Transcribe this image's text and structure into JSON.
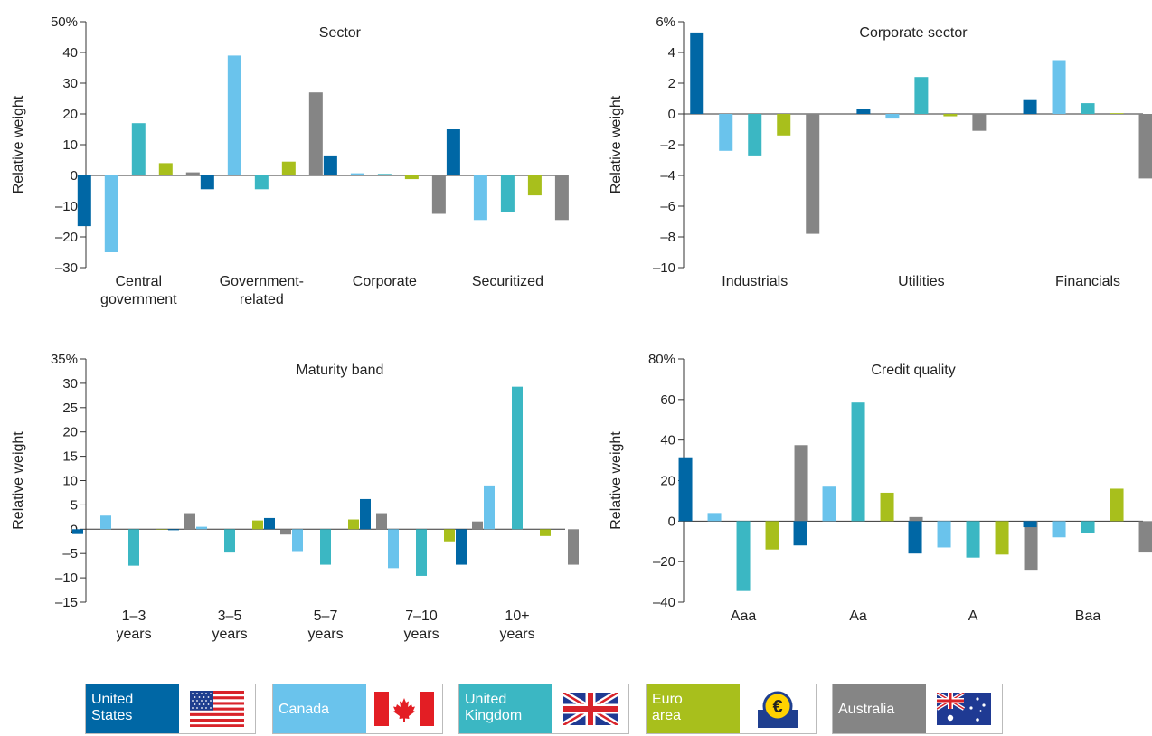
{
  "colors": {
    "United States": "#0067a5",
    "Canada": "#6ac3ec",
    "United Kingdom": "#3bb7c3",
    "Euro area": "#a8bf1c",
    "Australia": "#858585"
  },
  "legend": [
    {
      "label": "United States",
      "lines": [
        "United",
        "States"
      ],
      "flag": "us-flag-icon"
    },
    {
      "label": "Canada",
      "lines": [
        "Canada"
      ],
      "flag": "canada-flag-icon"
    },
    {
      "label": "United Kingdom",
      "lines": [
        "United",
        "Kingdom"
      ],
      "flag": "uk-flag-icon"
    },
    {
      "label": "Euro area",
      "lines": [
        "Euro",
        "area"
      ],
      "flag": "euro-flag-icon"
    },
    {
      "label": "Australia",
      "lines": [
        "Australia"
      ],
      "flag": "australia-flag-icon"
    }
  ],
  "chart_data": [
    {
      "type": "bar",
      "title": "Sector",
      "ylabel": "Relative weight",
      "ylim": [
        -30,
        50
      ],
      "yticks": [
        -30,
        -20,
        -10,
        0,
        10,
        20,
        30,
        40,
        50
      ],
      "ytick_labels": [
        "–30",
        "–20",
        "–10",
        "0",
        "10",
        "20",
        "30",
        "40",
        "50%"
      ],
      "categories": [
        [
          "Central",
          "government"
        ],
        [
          "Government-",
          "related"
        ],
        [
          "Corporate"
        ],
        [
          "Securitized"
        ]
      ],
      "series": [
        {
          "name": "United States",
          "values": [
            -16.5,
            -4.5,
            6.5,
            15
          ]
        },
        {
          "name": "Canada",
          "values": [
            -25,
            39,
            0.7,
            -14.5
          ]
        },
        {
          "name": "United Kingdom",
          "values": [
            17,
            -4.5,
            0.5,
            -12
          ]
        },
        {
          "name": "Euro area",
          "values": [
            4,
            4.5,
            -1.2,
            -6.5
          ]
        },
        {
          "name": "Australia",
          "values": [
            1,
            27,
            -12.5,
            -14.5
          ]
        }
      ]
    },
    {
      "type": "bar",
      "title": "Corporate sector",
      "ylabel": "Relative weight",
      "ylim": [
        -10,
        6
      ],
      "yticks": [
        -10,
        -8,
        -6,
        -4,
        -2,
        0,
        2,
        4,
        6
      ],
      "ytick_labels": [
        "–10",
        "–8",
        "–6",
        "–4",
        "–2",
        "0",
        "2",
        "4",
        "6%"
      ],
      "categories": [
        [
          "Industrials"
        ],
        [
          "Utilities"
        ],
        [
          "Financials"
        ]
      ],
      "series": [
        {
          "name": "United States",
          "values": [
            5.3,
            0.3,
            0.9
          ]
        },
        {
          "name": "Canada",
          "values": [
            -2.4,
            -0.3,
            3.5
          ]
        },
        {
          "name": "United Kingdom",
          "values": [
            -2.7,
            2.4,
            0.7
          ]
        },
        {
          "name": "Euro area",
          "values": [
            -1.4,
            -0.15,
            0.05
          ]
        },
        {
          "name": "Australia",
          "values": [
            -7.8,
            -1.1,
            -4.2
          ]
        }
      ]
    },
    {
      "type": "bar",
      "title": "Maturity band",
      "ylabel": "Relative weight",
      "ylim": [
        -15,
        35
      ],
      "yticks": [
        -15,
        -10,
        -5,
        0,
        5,
        10,
        15,
        20,
        25,
        30,
        35
      ],
      "ytick_labels": [
        "–15",
        "–10",
        "–5",
        "0",
        "5",
        "10",
        "15",
        "20",
        "25",
        "30",
        "35%"
      ],
      "categories": [
        [
          "1–3",
          "years"
        ],
        [
          "3–5",
          "years"
        ],
        [
          "5–7",
          "years"
        ],
        [
          "7–10",
          "years"
        ],
        [
          "10+",
          "years"
        ]
      ],
      "series": [
        {
          "name": "United States",
          "values": [
            -1,
            -0.2,
            2.3,
            6.2,
            -7.3
          ]
        },
        {
          "name": "Canada",
          "values": [
            2.8,
            0.5,
            -4.5,
            -8,
            9
          ]
        },
        {
          "name": "United Kingdom",
          "values": [
            -7.5,
            -4.8,
            -7.3,
            -9.6,
            29.3
          ]
        },
        {
          "name": "Euro area",
          "values": [
            0,
            1.8,
            2,
            -2.5,
            -1.4
          ]
        },
        {
          "name": "Australia",
          "values": [
            3.3,
            -1.1,
            3.3,
            1.6,
            -7.3
          ]
        }
      ]
    },
    {
      "type": "bar",
      "title": "Credit quality",
      "ylabel": "Relative weight",
      "ylim": [
        -40,
        80
      ],
      "yticks": [
        -40,
        -20,
        0,
        20,
        40,
        60,
        80
      ],
      "ytick_labels": [
        "–40",
        "–20",
        "0",
        "20",
        "40",
        "60",
        "80%"
      ],
      "categories": [
        [
          "Aaa"
        ],
        [
          "Aa"
        ],
        [
          "A"
        ],
        [
          "Baa"
        ]
      ],
      "series": [
        {
          "name": "United States",
          "values": [
            31.5,
            -12,
            -16,
            -3
          ]
        },
        {
          "name": "Canada",
          "values": [
            4,
            17,
            -13,
            -8
          ]
        },
        {
          "name": "United Kingdom",
          "values": [
            -34.5,
            58.5,
            -18,
            -6
          ]
        },
        {
          "name": "Euro area",
          "values": [
            -14,
            14,
            -16.5,
            16
          ]
        },
        {
          "name": "Australia",
          "values": [
            37.5,
            2,
            -24,
            -15.5
          ]
        }
      ]
    }
  ]
}
